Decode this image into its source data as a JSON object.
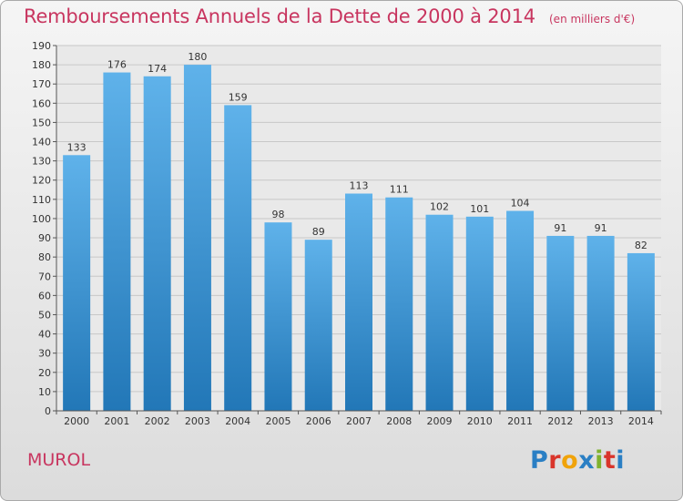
{
  "header": {
    "title": "Remboursements Annuels de la Dette de 2000 à 2014",
    "subtitle": "(en milliers d'€)"
  },
  "footer": {
    "commune": "MUROL",
    "logo_text": "Proxiti"
  },
  "colors": {
    "title": "#c8355f",
    "bar_top": "#5fb2ea",
    "bar_bottom": "#2277b7",
    "logo_letters": [
      "#2a7fc4",
      "#d9352b",
      "#f0a30a",
      "#2a7fc4",
      "#7fb22d",
      "#d9352b",
      "#2a7fc4"
    ]
  },
  "chart_data": {
    "type": "bar",
    "title": "Remboursements Annuels de la Dette de 2000 à 2014",
    "subtitle": "(en milliers d'€)",
    "categories": [
      "2000",
      "2001",
      "2002",
      "2003",
      "2004",
      "2005",
      "2006",
      "2007",
      "2008",
      "2009",
      "2010",
      "2011",
      "2012",
      "2013",
      "2014"
    ],
    "values": [
      133,
      176,
      174,
      180,
      159,
      98,
      89,
      113,
      111,
      102,
      101,
      104,
      91,
      91,
      82
    ],
    "xlabel": "",
    "ylabel": "",
    "ylim": [
      0,
      190
    ],
    "yticks": [
      0,
      10,
      20,
      30,
      40,
      50,
      60,
      70,
      80,
      90,
      100,
      110,
      120,
      130,
      140,
      150,
      160,
      170,
      180,
      190
    ],
    "grid": true,
    "data_labels": true
  }
}
